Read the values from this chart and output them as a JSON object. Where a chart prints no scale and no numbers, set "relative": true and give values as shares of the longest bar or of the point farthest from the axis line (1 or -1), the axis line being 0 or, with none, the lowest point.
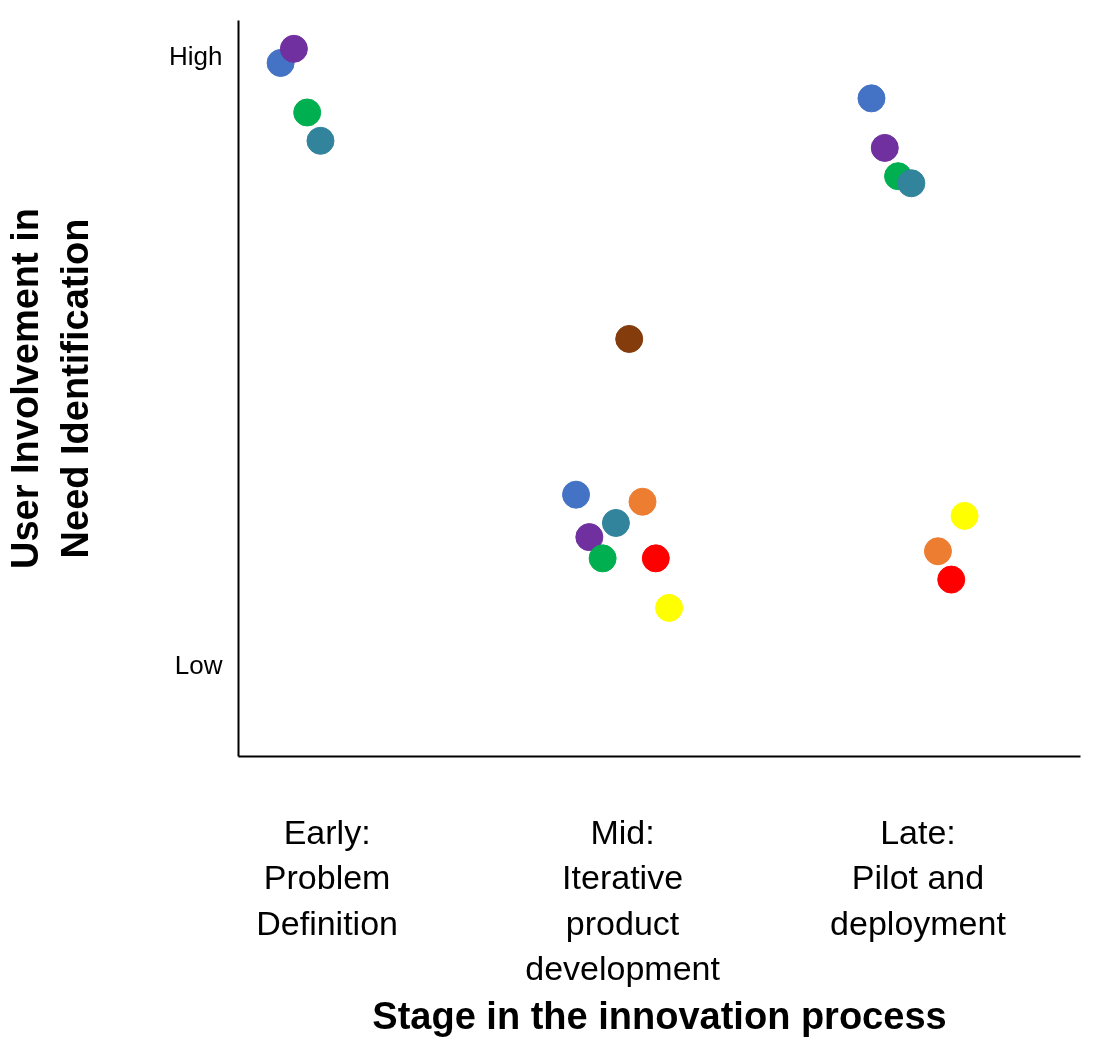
{
  "chart_data": {
    "type": "scatter",
    "xlabel": "Stage in the innovation process",
    "ylabel": "User Involvement in\nNeed Identification",
    "marker": "circle",
    "grid": false,
    "relative": true,
    "categories": [
      "Early:\nProblem\nDefinition",
      "Mid:\nIterative\nproduct\ndevelopment",
      "Late:\nPilot and\ndeployment"
    ],
    "annotations": [
      "High",
      "Low"
    ],
    "series": [
      {
        "color": "#4472c4",
        "values": [
          0.98,
          0.37,
          0.93
        ]
      },
      {
        "color": "#7030a0",
        "values": [
          1.0,
          0.31,
          0.86
        ]
      },
      {
        "color": "#00b050",
        "values": [
          0.91,
          0.28,
          0.82
        ]
      },
      {
        "color": "#31849b",
        "values": [
          0.87,
          0.33,
          0.81
        ]
      },
      {
        "color": "#843c0c",
        "values": [
          null,
          0.59,
          null
        ]
      },
      {
        "color": "#ed7d31",
        "values": [
          null,
          0.36,
          0.29
        ]
      },
      {
        "color": "#ff0000",
        "values": [
          null,
          0.28,
          0.25
        ]
      },
      {
        "color": "#ffff00",
        "values": [
          null,
          0.21,
          0.34
        ]
      }
    ]
  }
}
